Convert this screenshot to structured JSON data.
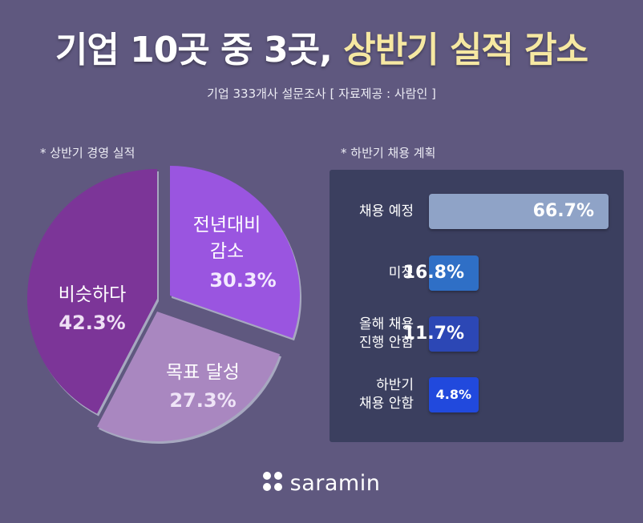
{
  "header": {
    "title_main": "기업 10곳 중 3곳,",
    "title_highlight": "상반기 실적 감소",
    "subtitle": "기업 333개사 설문조사 [ 자료제공 : 사람인 ]"
  },
  "colors": {
    "background": "#5f587f",
    "highlight": "#f6e8a2",
    "panel": "#3b3f5f"
  },
  "chart_data": [
    {
      "type": "pie",
      "title": "* 상반기 경영 실적",
      "slices": [
        {
          "label": "전년대비 감소",
          "label_lines": [
            "전년대비",
            "감소"
          ],
          "value": 30.3,
          "value_label": "30.3%",
          "color": "#9a55e0",
          "label_color": "#f3eaff"
        },
        {
          "label": "목표 달성",
          "label_lines": [
            "목표 달성"
          ],
          "value": 27.3,
          "value_label": "27.3%",
          "color": "#a987c0",
          "label_color": "#efe4f7"
        },
        {
          "label": "비슷하다",
          "label_lines": [
            "비슷하다"
          ],
          "value": 42.3,
          "value_label": "42.3%",
          "color": "#7c3598",
          "label_color": "#efe0f5"
        }
      ]
    },
    {
      "type": "bar",
      "title": "* 하반기 채용 계획",
      "categories": [
        "채용 예정",
        "미정",
        "올해 채용 진행 안함",
        "하반기 채용 안함"
      ],
      "category_lines": [
        [
          "채용 예정"
        ],
        [
          "미정"
        ],
        [
          "올해 채용",
          "진행 안함"
        ],
        [
          "하반기",
          "채용 안함"
        ]
      ],
      "values": [
        66.7,
        16.8,
        11.7,
        4.8
      ],
      "value_labels": [
        "66.7%",
        "16.8%",
        "11.7%",
        "4.8%"
      ],
      "colors": [
        "#8fa3c7",
        "#2f6fc6",
        "#2c47b5",
        "#2149dd"
      ],
      "xlim": [
        0,
        66.7
      ]
    }
  ],
  "footer": {
    "brand": "saramin",
    "logo_icon": "four-dots-logo-icon"
  }
}
